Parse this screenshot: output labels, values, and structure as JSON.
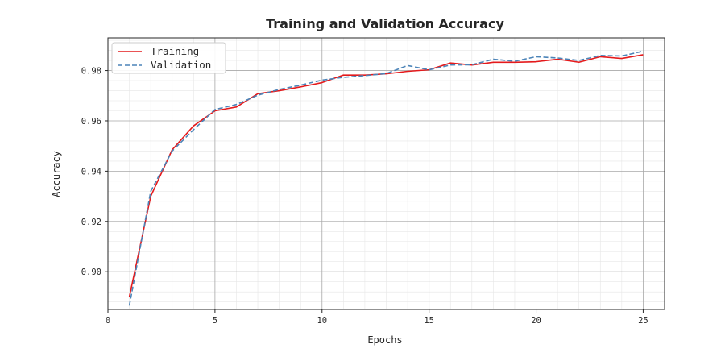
{
  "chart_data": {
    "type": "line",
    "title": "Training and Validation Accuracy",
    "xlabel": "Epochs",
    "ylabel": "Accuracy",
    "xlim": [
      0,
      26
    ],
    "ylim": [
      0.885,
      0.993
    ],
    "xticks": [
      0,
      5,
      10,
      15,
      20,
      25
    ],
    "yticks": [
      0.9,
      0.92,
      0.94,
      0.96,
      0.98
    ],
    "xtick_labels": [
      "0",
      "5",
      "10",
      "15",
      "20",
      "25"
    ],
    "ytick_labels": [
      "0.90",
      "0.92",
      "0.94",
      "0.96",
      "0.98"
    ],
    "grid": true,
    "minor_grid": true,
    "legend_position": "top-left",
    "x": [
      1,
      2,
      3,
      4,
      5,
      6,
      7,
      8,
      9,
      10,
      11,
      12,
      13,
      14,
      15,
      16,
      17,
      18,
      19,
      20,
      21,
      22,
      23,
      24,
      25
    ],
    "series": [
      {
        "name": "Training",
        "color": "#e41a1c",
        "style": "solid",
        "values": [
          0.89,
          0.93,
          0.9485,
          0.958,
          0.964,
          0.9655,
          0.9708,
          0.972,
          0.9735,
          0.9752,
          0.9782,
          0.9782,
          0.9787,
          0.9797,
          0.9803,
          0.983,
          0.9822,
          0.9833,
          0.9833,
          0.9835,
          0.9845,
          0.9833,
          0.9855,
          0.9848,
          0.9863
        ]
      },
      {
        "name": "Validation",
        "color": "#4c84b8",
        "style": "dashed",
        "values": [
          0.8865,
          0.932,
          0.948,
          0.9565,
          0.9645,
          0.9665,
          0.9702,
          0.9725,
          0.9742,
          0.9762,
          0.9773,
          0.978,
          0.9788,
          0.982,
          0.9803,
          0.9822,
          0.9823,
          0.9845,
          0.9837,
          0.9855,
          0.985,
          0.984,
          0.986,
          0.9858,
          0.9877
        ]
      }
    ]
  }
}
